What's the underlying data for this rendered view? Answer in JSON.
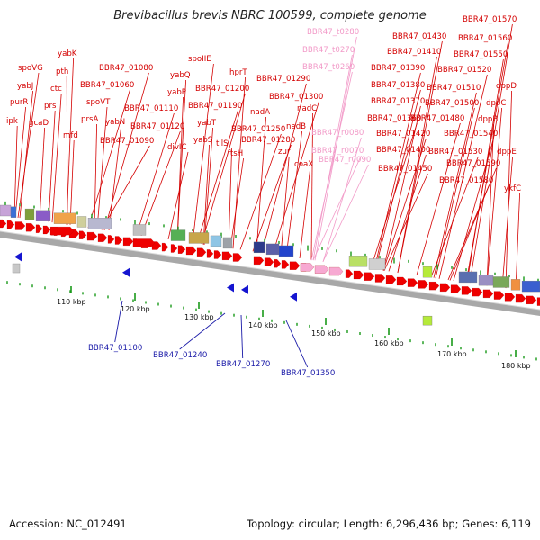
{
  "title": "Brevibacillus brevis NBRC 100599, complete genome",
  "accession": "Accession: NC_012491",
  "summary": "Topology: circular; Length: 6,296,436 bp; Genes: 6,119",
  "colors": {
    "gene_label": "#d40000",
    "rna_label": "#f29ac8",
    "pseudo_label": "#1a1aa8",
    "gene_arrow": "#ee0000",
    "rna_arrow": "#f7a9d2",
    "axis": "#a8a8a8",
    "tick": "#1a9a1a"
  },
  "upper_labels": [
    "spoVG",
    "yabJ",
    "purR",
    "ipk",
    "gcaD",
    "yabK",
    "pth",
    "ctc",
    "prs",
    "mfd",
    "BBR47_01080",
    "BBR47_01060",
    "spoVT",
    "prsA",
    "yabN",
    "BBR47_01090",
    "spoIIE",
    "yabQ",
    "yabP",
    "BBR47_01110",
    "BBR47_01120",
    "divIC",
    "hprT",
    "BBR47_01200",
    "BBR47_01190",
    "yabT",
    "yabS",
    "tilS",
    "ftsH",
    "BBR47_01290",
    "BBR47_01300",
    "nadA",
    "BBR47_01250",
    "BBR47_01280",
    "nadC",
    "nadB",
    "zur",
    "coaX",
    "BBR47_t0280",
    "BBR47_t0270",
    "BBR47_t0260",
    "BBR47_r0080",
    "BBR47_r0070",
    "BBR47_r0090",
    "BBR47_01570",
    "BBR47_01430",
    "BBR47_01560",
    "BBR47_01410",
    "BBR47_01550",
    "BBR47_01390",
    "BBR47_01520",
    "BBR47_01380",
    "BBR47_01510",
    "dppD",
    "BBR47_01370",
    "BBR47_01500",
    "dppC",
    "BBR47_01360",
    "BBR47_01480",
    "dppB",
    "BBR47_01420",
    "BBR47_01540",
    "BBR47_01400",
    "BBR47_01530",
    "dppE",
    "BBR47_01590",
    "BBR47_01450",
    "BBR47_01580",
    "ykfC"
  ],
  "lower_labels": [
    "BBR47_01100",
    "BBR47_01240",
    "BBR47_01270",
    "BBR47_01350"
  ],
  "scale_ticks": [
    "110 kbp",
    "120 kbp",
    "130 kbp",
    "140 kbp",
    "150 kbp",
    "160 kbp",
    "170 kbp",
    "180 kbp"
  ]
}
